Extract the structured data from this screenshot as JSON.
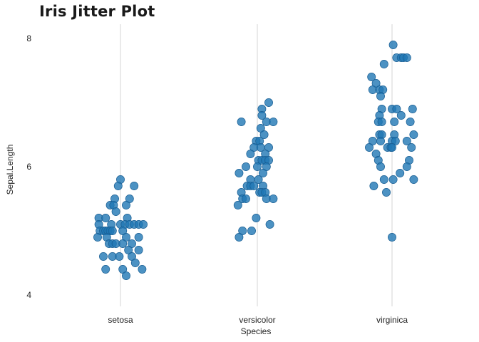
{
  "chart_data": {
    "type": "scatter",
    "title": "Iris Jitter Plot",
    "xlabel": "Species",
    "ylabel": "Sepal.Length",
    "categories": [
      "setosa",
      "versicolor",
      "virginica"
    ],
    "ylim": [
      3.8,
      8.2
    ],
    "yticks": [
      4,
      6,
      8
    ],
    "ytick_labels": [
      "4",
      "6",
      "8"
    ],
    "grid": "vertical-only",
    "legend": "none",
    "point_color": "#1f77b4",
    "series": [
      {
        "category": "setosa",
        "values": [
          5.8,
          5.7,
          5.7,
          5.5,
          5.5,
          5.4,
          5.4,
          5.4,
          5.3,
          5.2,
          5.2,
          5.2,
          5.1,
          5.1,
          5.1,
          5.1,
          5.1,
          5.1,
          5.1,
          5.1,
          5.0,
          5.0,
          5.0,
          5.0,
          5.0,
          5.0,
          5.0,
          4.9,
          4.9,
          4.9,
          4.9,
          4.8,
          4.8,
          4.8,
          4.8,
          4.8,
          4.7,
          4.7,
          4.6,
          4.6,
          4.6,
          4.6,
          4.5,
          4.4,
          4.4,
          4.4,
          4.3
        ],
        "jitter": [
          0.0,
          -0.02,
          0.12,
          -0.05,
          0.08,
          -0.09,
          -0.06,
          0.05,
          -0.04,
          -0.19,
          -0.13,
          0.06,
          -0.19,
          -0.08,
          0.0,
          0.04,
          0.08,
          0.12,
          0.16,
          0.2,
          -0.18,
          -0.15,
          -0.13,
          -0.11,
          -0.09,
          -0.07,
          0.02,
          -0.2,
          -0.12,
          0.05,
          0.16,
          -0.1,
          -0.07,
          -0.04,
          0.02,
          0.1,
          0.07,
          0.16,
          -0.15,
          -0.07,
          -0.01,
          0.1,
          0.13,
          -0.13,
          0.02,
          0.19,
          0.05
        ]
      },
      {
        "category": "versicolor",
        "values": [
          7.0,
          6.9,
          6.8,
          6.7,
          6.7,
          6.7,
          6.6,
          6.5,
          6.4,
          6.4,
          6.3,
          6.3,
          6.3,
          6.2,
          6.2,
          6.1,
          6.1,
          6.1,
          6.1,
          6.0,
          6.0,
          6.0,
          5.9,
          5.9,
          5.8,
          5.8,
          5.7,
          5.7,
          5.7,
          5.7,
          5.6,
          5.6,
          5.6,
          5.6,
          5.5,
          5.5,
          5.5,
          5.5,
          5.4,
          5.2,
          5.1,
          5.0,
          5.0,
          4.9
        ],
        "jitter": [
          0.1,
          0.04,
          0.04,
          -0.14,
          0.08,
          0.14,
          0.03,
          0.06,
          -0.01,
          0.02,
          -0.03,
          0.03,
          0.1,
          -0.06,
          0.07,
          0.01,
          0.04,
          0.07,
          0.1,
          -0.1,
          0.0,
          0.08,
          -0.16,
          0.05,
          -0.06,
          0.01,
          -0.09,
          -0.06,
          -0.03,
          0.05,
          -0.14,
          0.02,
          0.04,
          0.07,
          -0.13,
          -0.1,
          0.08,
          0.14,
          -0.17,
          -0.01,
          0.11,
          -0.13,
          -0.05,
          -0.16
        ]
      },
      {
        "category": "virginica",
        "values": [
          7.9,
          7.7,
          7.7,
          7.7,
          7.7,
          7.6,
          7.4,
          7.3,
          7.2,
          7.2,
          7.2,
          7.1,
          6.9,
          6.9,
          6.9,
          6.9,
          6.8,
          6.8,
          6.7,
          6.7,
          6.7,
          6.7,
          6.5,
          6.5,
          6.5,
          6.5,
          6.4,
          6.4,
          6.4,
          6.4,
          6.4,
          6.3,
          6.3,
          6.3,
          6.3,
          6.3,
          6.2,
          6.1,
          6.1,
          6.0,
          6.0,
          5.9,
          5.8,
          5.8,
          5.8,
          5.7,
          5.6,
          4.9
        ],
        "jitter": [
          0.01,
          0.04,
          0.08,
          0.1,
          0.13,
          -0.07,
          -0.18,
          -0.14,
          -0.17,
          -0.11,
          -0.08,
          -0.1,
          0.0,
          0.04,
          0.18,
          -0.09,
          -0.11,
          0.08,
          -0.12,
          -0.09,
          0.02,
          0.16,
          -0.11,
          -0.09,
          0.02,
          0.19,
          -0.17,
          -0.1,
          0.0,
          0.03,
          0.13,
          -0.2,
          -0.04,
          -0.01,
          0.0,
          0.17,
          -0.14,
          -0.12,
          0.15,
          -0.1,
          0.13,
          0.07,
          -0.07,
          0.01,
          0.19,
          -0.16,
          -0.05,
          0.0
        ]
      }
    ]
  }
}
